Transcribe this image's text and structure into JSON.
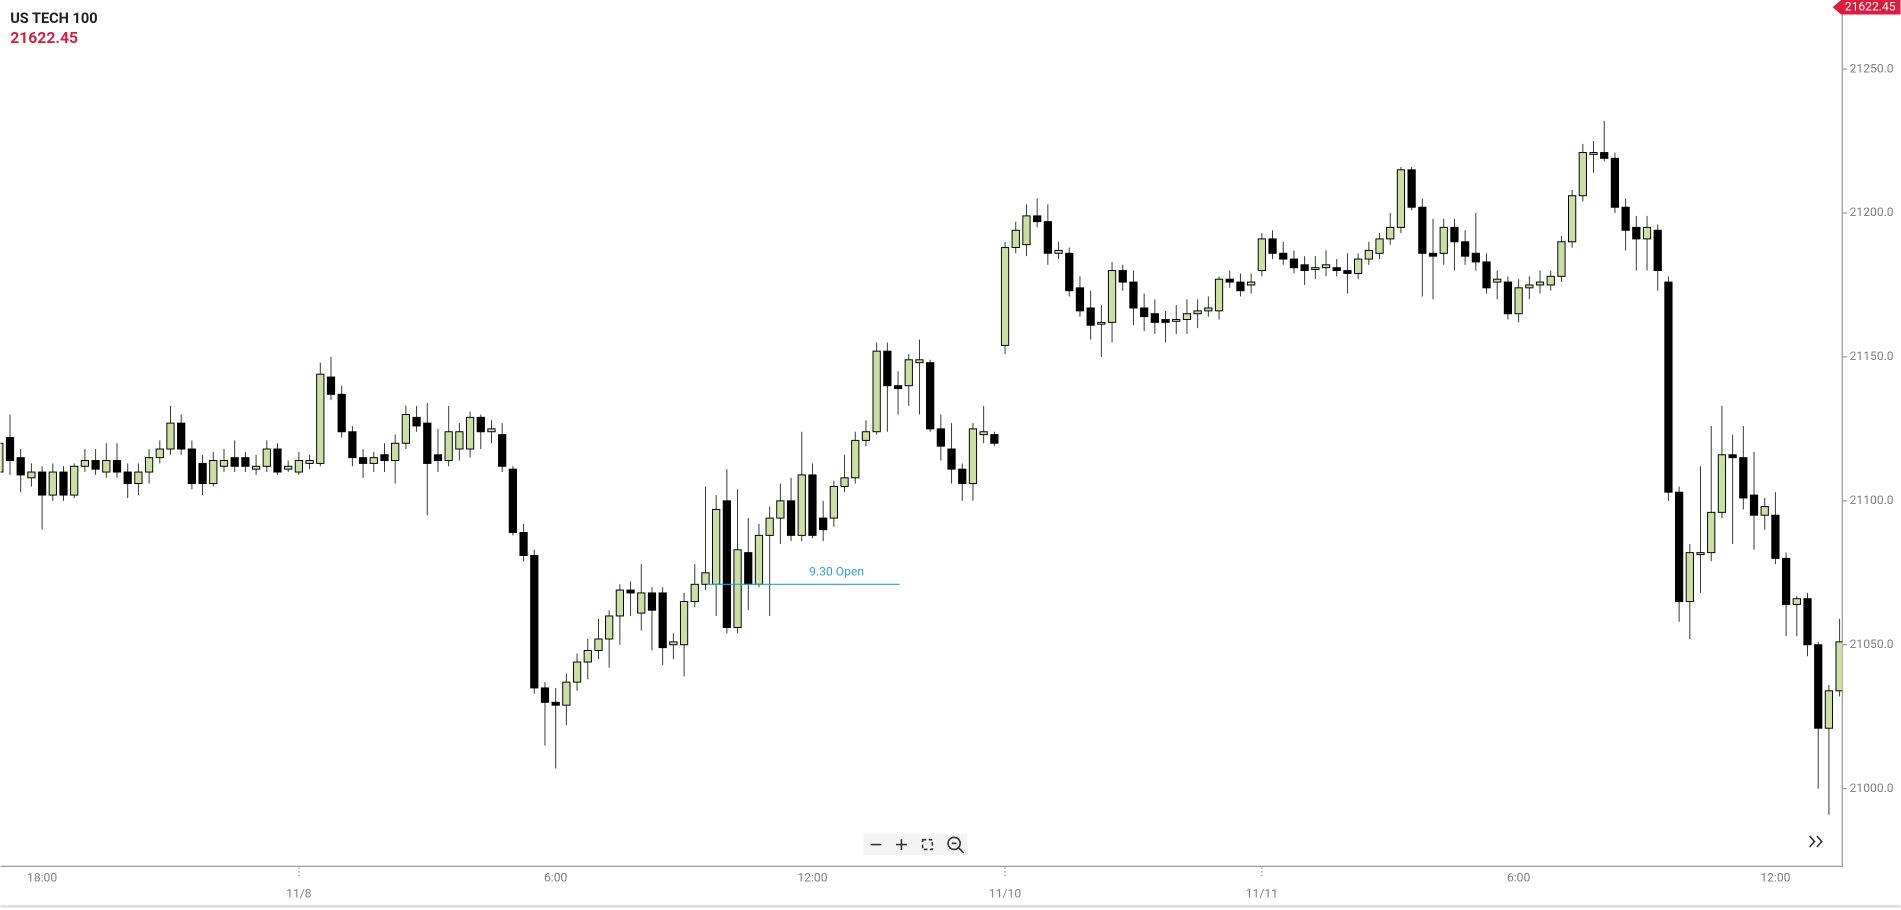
{
  "chart_data": {
    "type": "candlestick",
    "title": "US TECH 100",
    "last_price": "21622.45",
    "categories": [
      null,
      null,
      null,
      null,
      "18:00",
      null,
      null,
      null,
      null,
      null,
      null,
      null,
      null,
      null,
      null,
      null,
      null,
      null,
      null,
      null,
      null,
      null,
      null,
      null,
      null,
      null,
      null,
      null,
      "11/8",
      null,
      null,
      null,
      null,
      null,
      null,
      null,
      null,
      null,
      null,
      null,
      null,
      null,
      null,
      null,
      null,
      null,
      null,
      null,
      null,
      null,
      null,
      null,
      "6:00",
      null,
      null,
      null,
      null,
      null,
      null,
      null,
      null,
      null,
      null,
      null,
      null,
      null,
      null,
      null,
      null,
      null,
      null,
      null,
      null,
      null,
      null,
      null,
      "12:00",
      null,
      null,
      null,
      null,
      null,
      null,
      null,
      null,
      null,
      null,
      null,
      null,
      null,
      null,
      null,
      null,
      null,
      "11/10",
      null,
      null,
      null,
      null,
      null,
      null,
      null,
      null,
      null,
      null,
      null,
      null,
      null,
      null,
      null,
      null,
      null,
      null,
      null,
      null,
      null,
      null,
      null,
      "11/11",
      null,
      null,
      null,
      null,
      null,
      null,
      null,
      null,
      null,
      null,
      null,
      null,
      null,
      null,
      null,
      null,
      null,
      null,
      null,
      null,
      null,
      null,
      null,
      "6:00",
      null,
      null,
      null,
      null,
      null,
      null,
      null,
      null,
      null,
      null,
      null,
      null,
      null,
      null,
      null,
      null,
      null,
      null,
      null,
      null,
      null,
      null,
      null,
      "12:00",
      null,
      null,
      null,
      null,
      null,
      null
    ],
    "open": [
      21110,
      21122,
      21115,
      21108,
      21110,
      21102,
      21110,
      21102,
      21112,
      21114,
      21110,
      21114,
      21110,
      21106,
      21110,
      21115,
      21118,
      21127,
      21118,
      21113,
      21106,
      21112,
      21115,
      21115,
      21111,
      21112,
      21118,
      21111,
      21110,
      21113,
      21113,
      21143,
      21137,
      21124,
      21115,
      21113,
      21116,
      21114,
      21120,
      21129,
      21127,
      21116,
      21114,
      21118,
      21118,
      21129,
      21124,
      21123,
      21111,
      21089,
      21081,
      21035,
      21030,
      21029,
      21037,
      21044,
      21048,
      21052,
      21060,
      21069,
      21061,
      21068,
      21068,
      21050,
      21050,
      21065,
      21071,
      21071,
      21100,
      21056,
      21082,
      21071,
      21088,
      21094,
      21100,
      21088,
      21109,
      21094,
      21094,
      21105,
      21108,
      21121,
      21124,
      21152,
      21140,
      21140,
      21148,
      21148,
      21125,
      21118,
      21111,
      21106,
      21123,
      21123,
      21154,
      21188,
      21189,
      21199,
      21197,
      21186,
      21186,
      21174,
      21167,
      21162,
      21162,
      21180,
      21176,
      21167,
      21165,
      21163,
      21163,
      21163,
      21165,
      21166,
      21166,
      21177,
      21176,
      21175,
      21180,
      21191,
      21186,
      21184,
      21182,
      21181,
      21181,
      21181,
      21180,
      21179,
      21184,
      21186,
      21191,
      21195,
      21215,
      21202,
      21186,
      21186,
      21195,
      21190,
      21186,
      21183,
      21176,
      21176,
      21165,
      21174,
      21175,
      21175,
      21178,
      21190,
      21206,
      21221,
      21221,
      21219,
      21202,
      21195,
      21191,
      21194,
      21176,
      21103,
      21065,
      21082,
      21082,
      21096,
      21116,
      21115,
      21102,
      21095,
      21095,
      21080,
      21064,
      21066,
      21050,
      21021,
      21034
    ],
    "high": [
      21135,
      21130,
      21118,
      21113,
      21112,
      21113,
      21112,
      21113,
      21118,
      21118,
      21120,
      21120,
      21113,
      21113,
      21118,
      21121,
      21133,
      21130,
      21121,
      21116,
      21117,
      21118,
      21121,
      21117,
      21116,
      21121,
      21120,
      21114,
      21117,
      21116,
      21148,
      21150,
      21140,
      21126,
      21118,
      21117,
      21120,
      21123,
      21133,
      21133,
      21134,
      21125,
      21133,
      21127,
      21131,
      21130,
      21128,
      21127,
      21112,
      21092,
      21083,
      21037,
      21035,
      21040,
      21047,
      21052,
      21059,
      21062,
      21071,
      21072,
      21078,
      21070,
      21070,
      21054,
      21068,
      21078,
      21105,
      21102,
      21111,
      21104,
      21094,
      21092,
      21098,
      21106,
      21108,
      21124,
      21113,
      21100,
      21107,
      21116,
      21124,
      21128,
      21155,
      21155,
      21145,
      21151,
      21156,
      21149,
      21130,
      21127,
      21113,
      21127,
      21133,
      21124,
      21190,
      21197,
      21203,
      21205,
      21203,
      21190,
      21188,
      21178,
      21173,
      21168,
      21183,
      21182,
      21180,
      21172,
      21170,
      21166,
      21168,
      21170,
      21170,
      21171,
      21178,
      21180,
      21179,
      21179,
      21193,
      21194,
      21190,
      21187,
      21185,
      21185,
      21187,
      21184,
      21186,
      21186,
      21190,
      21193,
      21200,
      21216,
      21216,
      21205,
      21198,
      21198,
      21198,
      21194,
      21200,
      21186,
      21180,
      21178,
      21177,
      21178,
      21180,
      21180,
      21192,
      21208,
      21224,
      21225,
      21232,
      21221,
      21205,
      21199,
      21199,
      21196,
      21178,
      21105,
      21085,
      21112,
      21126,
      21133,
      21123,
      21126,
      21117,
      21101,
      21103,
      21082,
      21067,
      21068,
      21051,
      21036,
      21059
    ],
    "low": [
      21093,
      21109,
      21103,
      21105,
      21090,
      21100,
      21100,
      21101,
      21110,
      21109,
      21108,
      21108,
      21101,
      21102,
      21106,
      21113,
      21116,
      21116,
      21104,
      21102,
      21105,
      21110,
      21110,
      21110,
      21109,
      21110,
      21109,
      21110,
      21109,
      21111,
      21112,
      21135,
      21122,
      21112,
      21108,
      21110,
      21110,
      21106,
      21118,
      21124,
      21095,
      21110,
      21112,
      21114,
      21115,
      21118,
      21120,
      21110,
      21088,
      21079,
      21033,
      21015,
      21007,
      21022,
      21034,
      21038,
      21045,
      21042,
      21050,
      21060,
      21055,
      21048,
      21043,
      21045,
      21039,
      21063,
      21069,
      21060,
      21054,
      21054,
      21062,
      21070,
      21060,
      21085,
      21086,
      21086,
      21087,
      21086,
      21091,
      21103,
      21106,
      21119,
      21123,
      21124,
      21130,
      21133,
      21130,
      21124,
      21114,
      21106,
      21100,
      21100,
      21120,
      21119,
      21151,
      21186,
      21185,
      21195,
      21182,
      21184,
      21171,
      21164,
      21156,
      21150,
      21155,
      21173,
      21161,
      21159,
      21158,
      21155,
      21158,
      21158,
      21160,
      21164,
      21163,
      21174,
      21171,
      21172,
      21178,
      21184,
      21182,
      21179,
      21175,
      21177,
      21178,
      21178,
      21172,
      21177,
      21182,
      21184,
      21189,
      21193,
      21201,
      21171,
      21170,
      21182,
      21180,
      21182,
      21180,
      21172,
      21170,
      21163,
      21162,
      21170,
      21172,
      21173,
      21176,
      21188,
      21204,
      21214,
      21218,
      21200,
      21187,
      21180,
      21180,
      21173,
      21100,
      21058,
      21052,
      21068,
      21079,
      21094,
      21085,
      21097,
      21083,
      21090,
      21078,
      21053,
      21053,
      21046,
      21000,
      20991,
      21032
    ],
    "close": [
      21120,
      21114,
      21109,
      21110,
      21102,
      21110,
      21102,
      21112,
      21114,
      21111,
      21114,
      21110,
      21106,
      21110,
      21115,
      21118,
      21127,
      21118,
      21106,
      21106,
      21114,
      21114,
      21112,
      21112,
      21112,
      21118,
      21110,
      21112,
      21114,
      21114,
      21144,
      21137,
      21124,
      21115,
      21113,
      21115,
      21114,
      21120,
      21130,
      21126,
      21113,
      21114,
      21124,
      21124,
      21129,
      21124,
      21125,
      21112,
      21089,
      21081,
      21035,
      21030,
      21029,
      21037,
      21044,
      21048,
      21052,
      21060,
      21069,
      21068,
      21068,
      21062,
      21049,
      21051,
      21065,
      21071,
      21075,
      21097,
      21056,
      21083,
      21071,
      21088,
      21094,
      21100,
      21088,
      21109,
      21088,
      21090,
      21105,
      21108,
      21121,
      21124,
      21152,
      21140,
      21139,
      21149,
      21149,
      21125,
      21119,
      21111,
      21106,
      21125,
      21124,
      21120,
      21188,
      21194,
      21199,
      21197,
      21186,
      21187,
      21173,
      21166,
      21161,
      21162,
      21180,
      21176,
      21167,
      21164,
      21162,
      21162,
      21163,
      21165,
      21166,
      21167,
      21177,
      21176,
      21173,
      21176,
      21191,
      21186,
      21184,
      21181,
      21180,
      21181,
      21182,
      21180,
      21179,
      21184,
      21187,
      21191,
      21195,
      21215,
      21202,
      21186,
      21185,
      21195,
      21190,
      21185,
      21183,
      21174,
      21177,
      21165,
      21174,
      21175,
      21176,
      21178,
      21190,
      21206,
      21221,
      21221,
      21219,
      21202,
      21194,
      21191,
      21195,
      21180,
      21103,
      21065,
      21082,
      21082,
      21096,
      21116,
      21115,
      21101,
      21095,
      21098,
      21080,
      21064,
      21066,
      21050,
      21021,
      21034,
      21051
    ],
    "up_color": "#c9dfa3",
    "down_color": "#000000",
    "price_color": "#d81e3c",
    "annotations": [
      {
        "text": "9.30 Open",
        "value": 21071,
        "color": "#29a3da"
      }
    ],
    "ylim": [
      20973,
      21274
    ],
    "yticks": [
      {
        "value": 21000,
        "label": "21000.0"
      },
      {
        "value": 21050,
        "label": "21050.0"
      },
      {
        "value": 21100,
        "label": "21100.0"
      },
      {
        "value": 21150,
        "label": "21150.0"
      },
      {
        "value": 21200,
        "label": "21200.0"
      },
      {
        "value": 21250,
        "label": "21250.0"
      }
    ],
    "grid": false
  }
}
